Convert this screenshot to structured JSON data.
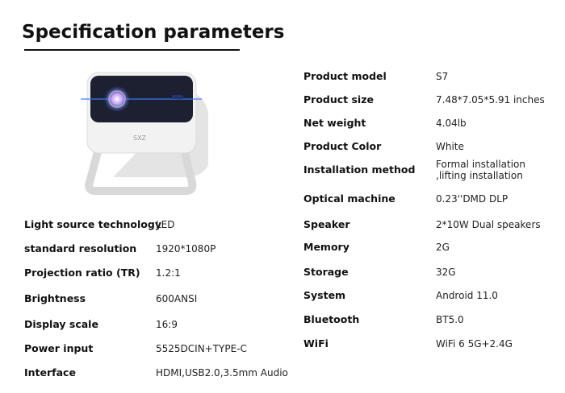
{
  "title": "Specification parameters",
  "product_image": {
    "brand_logo": "SXZ",
    "accent_color": "#3a7bff"
  },
  "left_specs": [
    {
      "label": "Light source technology",
      "value": "LED"
    },
    {
      "label": "standard resolution",
      "value": "1920*1080P"
    },
    {
      "label": "Projection ratio (TR)",
      "value": "1.2:1"
    },
    {
      "label": "Brightness",
      "value": "600ANSI"
    },
    {
      "label": "Display scale",
      "value": "16:9"
    },
    {
      "label": "Power input",
      "value": "5525DCIN+TYPE-C"
    },
    {
      "label": "Interface",
      "value": "HDMI,USB2.0,3.5mm Audio"
    }
  ],
  "right_specs": [
    {
      "label": "Product model",
      "value": "S7"
    },
    {
      "label": "Product size",
      "value": "7.48*7.05*5.91 inches"
    },
    {
      "label": "Net weight",
      "value": "4.04lb"
    },
    {
      "label": "Product Color",
      "value": "White"
    },
    {
      "label": "Installation method",
      "value": "Formal installation ,lifting installation"
    },
    {
      "label": "Optical machine",
      "value": "0.23''DMD DLP"
    },
    {
      "label": "Speaker",
      "value": "2*10W Dual speakers"
    },
    {
      "label": "Memory",
      "value": "2G"
    },
    {
      "label": "Storage",
      "value": "32G"
    },
    {
      "label": "System",
      "value": "Android 11.0"
    },
    {
      "label": "Bluetooth",
      "value": "BT5.0"
    },
    {
      "label": "WiFi",
      "value": "WiFi 6 5G+2.4G"
    }
  ]
}
